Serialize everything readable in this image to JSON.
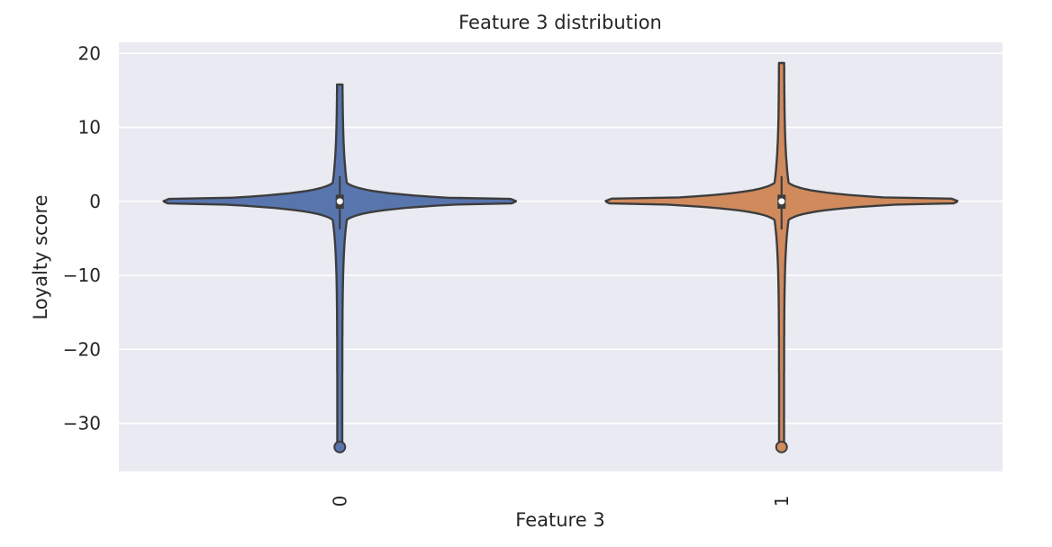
{
  "chart_data": {
    "type": "violin",
    "title": "Feature 3 distribution",
    "xlabel": "Feature 3",
    "ylabel": "Loyalty score",
    "categories": [
      "0",
      "1"
    ],
    "ylim": [
      -36.5,
      21.5
    ],
    "yticks": [
      20,
      10,
      0,
      -10,
      -20,
      -30
    ],
    "ytick_labels": [
      "20",
      "10",
      "0",
      "−10",
      "−20",
      "−30"
    ],
    "grid": true,
    "background": "#eaeaf2",
    "series": [
      {
        "category": "0",
        "color": "#5875ae",
        "min": -33.2,
        "max": 15.8,
        "median": 0.0,
        "q1": -1.0,
        "q3": 0.9,
        "whisker_low": -3.8,
        "whisker_high": 3.4,
        "outlier": -33.2
      },
      {
        "category": "1",
        "color": "#d08a5c",
        "min": -33.2,
        "max": 18.7,
        "median": 0.0,
        "q1": -1.0,
        "q3": 0.9,
        "whisker_low": -3.8,
        "whisker_high": 3.4,
        "outlier": -33.2
      }
    ]
  }
}
